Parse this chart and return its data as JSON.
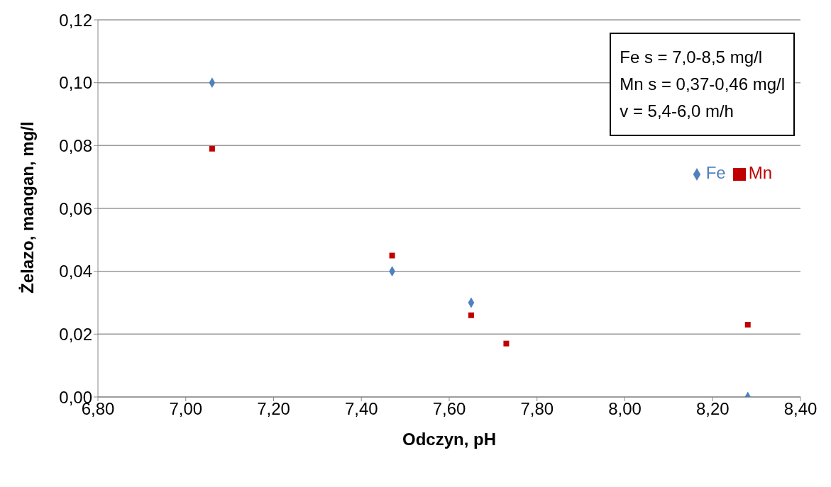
{
  "chart_data": {
    "type": "scatter",
    "xlabel": "Odczyn, pH",
    "ylabel": "Żelazo, mangan,  mg/l",
    "xlim": [
      6.8,
      8.4
    ],
    "xticks": [
      {
        "value": 6.8,
        "label": "6,80"
      },
      {
        "value": 7.0,
        "label": "7,00"
      },
      {
        "value": 7.2,
        "label": "7,20"
      },
      {
        "value": 7.4,
        "label": "7,40"
      },
      {
        "value": 7.6,
        "label": "7,60"
      },
      {
        "value": 7.8,
        "label": "7,80"
      },
      {
        "value": 8.0,
        "label": "8,00"
      },
      {
        "value": 8.2,
        "label": "8,20"
      },
      {
        "value": 8.4,
        "label": "8,40"
      }
    ],
    "ylim": [
      0,
      0.12
    ],
    "yticks": [
      {
        "value": 0,
        "label": "0,00"
      },
      {
        "value": 0.02,
        "label": "0,02"
      },
      {
        "value": 0.04,
        "label": "0,04"
      },
      {
        "value": 0.06,
        "label": "0,06"
      },
      {
        "value": 0.08,
        "label": "0,08"
      },
      {
        "value": 0.1,
        "label": "0,10"
      },
      {
        "value": 0.12,
        "label": "0,12"
      }
    ],
    "grid": "y",
    "legend": "right",
    "annotations": [
      "Fe s = 7,0-8,5 mg/l",
      "Mn s = 0,37-0,46 mg/l",
      "v = 5,4-6,0 m/h"
    ],
    "series": [
      {
        "name": "Fe",
        "color": "#4f81bd",
        "marker": "diamond",
        "x": [
          7.06,
          7.47,
          7.65,
          8.28
        ],
        "values": [
          0.1,
          0.04,
          0.03,
          0.0
        ]
      },
      {
        "name": "Mn",
        "color": "#c00000",
        "marker": "square",
        "x": [
          7.06,
          7.47,
          7.65,
          7.73,
          8.28
        ],
        "values": [
          0.079,
          0.045,
          0.026,
          0.017,
          0.023
        ]
      }
    ]
  }
}
